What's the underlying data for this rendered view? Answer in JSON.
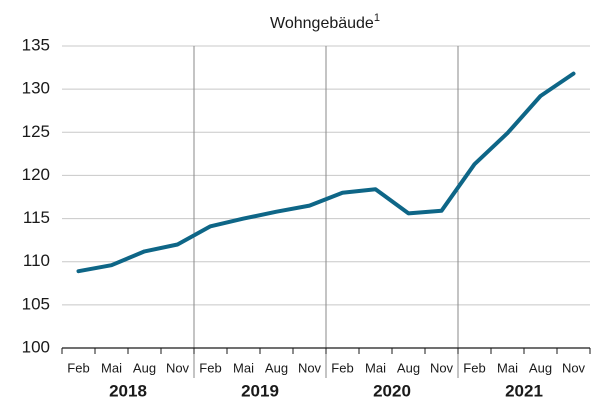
{
  "chart_data": {
    "type": "line",
    "title": "Wohngebäude",
    "title_footnote": "1",
    "categories": [
      "Feb",
      "Mai",
      "Aug",
      "Nov",
      "Feb",
      "Mai",
      "Aug",
      "Nov",
      "Feb",
      "Mai",
      "Aug",
      "Nov",
      "Feb",
      "Mai",
      "Aug",
      "Nov"
    ],
    "year_groups": [
      "2018",
      "2019",
      "2020",
      "2021"
    ],
    "series": [
      {
        "name": "Wohngebäude",
        "color": "#0e6687",
        "values": [
          108.9,
          109.6,
          111.2,
          112.0,
          114.1,
          115.0,
          115.8,
          116.5,
          118.0,
          118.4,
          115.6,
          115.9,
          121.3,
          124.9,
          129.2,
          131.8
        ]
      }
    ],
    "ylim": [
      100,
      135
    ],
    "yticks": [
      100,
      105,
      110,
      115,
      120,
      125,
      130,
      135
    ],
    "grid": true
  }
}
